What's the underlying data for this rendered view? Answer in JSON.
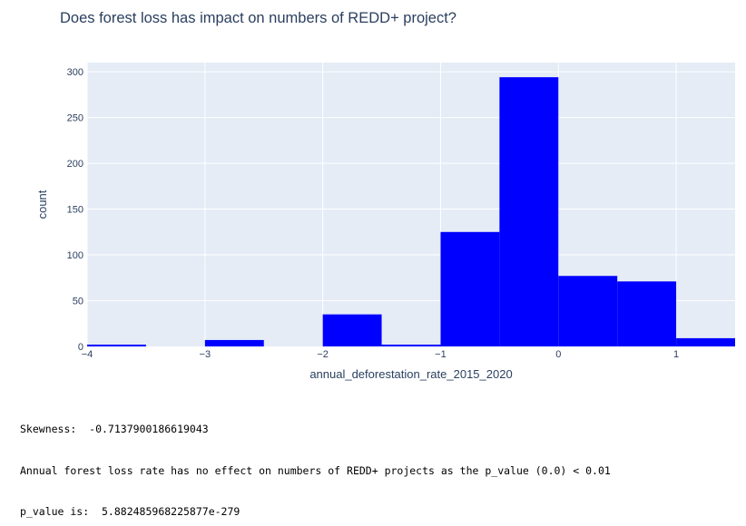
{
  "chart": {
    "title": "Does forest loss has impact on numbers of REDD+ project?"
  },
  "chart_data": {
    "type": "bar",
    "title": "Does forest loss has impact on numbers of REDD+ project?",
    "xlabel": "annual_deforestation_rate_2015_2020",
    "ylabel": "count",
    "xlim": [
      -4,
      1.5
    ],
    "ylim": [
      0,
      310
    ],
    "bin_width": 0.5,
    "bins": [
      {
        "x0": -4.0,
        "x1": -3.5,
        "count": 2
      },
      {
        "x0": -3.5,
        "x1": -3.0,
        "count": 0
      },
      {
        "x0": -3.0,
        "x1": -2.5,
        "count": 7
      },
      {
        "x0": -2.5,
        "x1": -2.0,
        "count": 0
      },
      {
        "x0": -2.0,
        "x1": -1.5,
        "count": 35
      },
      {
        "x0": -1.5,
        "x1": -1.0,
        "count": 2
      },
      {
        "x0": -1.0,
        "x1": -0.5,
        "count": 125
      },
      {
        "x0": -0.5,
        "x1": 0.0,
        "count": 294
      },
      {
        "x0": 0.0,
        "x1": 0.5,
        "count": 77
      },
      {
        "x0": 0.5,
        "x1": 1.0,
        "count": 71
      },
      {
        "x0": 1.0,
        "x1": 1.5,
        "count": 9
      }
    ],
    "x_ticks": [
      -4,
      -3,
      -2,
      -1,
      0,
      1
    ],
    "x_tick_labels": [
      "−4",
      "−3",
      "−2",
      "−1",
      "0",
      "1"
    ],
    "y_ticks": [
      0,
      50,
      100,
      150,
      200,
      250,
      300
    ],
    "y_tick_labels": [
      "0",
      "50",
      "100",
      "150",
      "200",
      "250",
      "300"
    ],
    "bar_color": "#0000ff",
    "plot_bg": "#e5ecf6",
    "grid": true
  },
  "output": {
    "skewness": "Skewness:  -0.7137900186619043",
    "conclusion": "Annual forest loss rate has no effect on numbers of REDD+ projects as the p_value (0.0) < 0.01",
    "p_value": "p_value is:  5.882485968225877e-279"
  }
}
